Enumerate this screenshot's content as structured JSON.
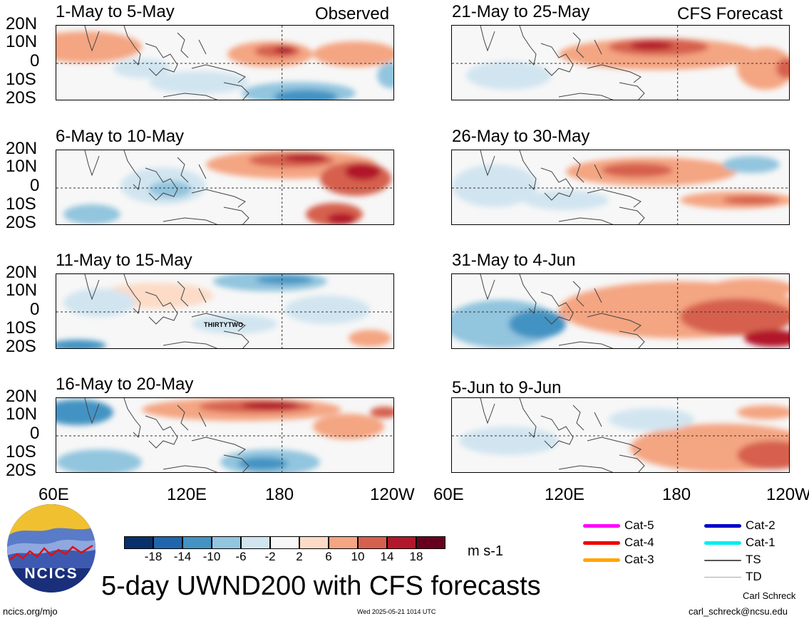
{
  "left_header": "Observed",
  "right_header": "CFS Forecast",
  "lat_labels": [
    "20N",
    "10N",
    "0",
    "10S",
    "20S"
  ],
  "lon_labels": [
    "60E",
    "120E",
    "180",
    "120W"
  ],
  "panels_left": [
    {
      "title": "1-May to 5-May"
    },
    {
      "title": "6-May to 10-May"
    },
    {
      "title": "11-May to 15-May",
      "storm": "THIRTYTWO"
    },
    {
      "title": "16-May to 20-May"
    }
  ],
  "panels_right": [
    {
      "title": "21-May to 25-May"
    },
    {
      "title": "26-May to 30-May"
    },
    {
      "title": "31-May to 4-Jun"
    },
    {
      "title": "5-Jun to 9-Jun"
    }
  ],
  "colorbar": {
    "ticks": [
      "-18",
      "-14",
      "-10",
      "-6",
      "-2",
      "2",
      "6",
      "10",
      "14",
      "18"
    ],
    "colors": [
      "#08306b",
      "#2166ac",
      "#4393c3",
      "#92c5de",
      "#d1e5f0",
      "#f7f7f7",
      "#fddbc7",
      "#f4a582",
      "#d6604d",
      "#b2182b",
      "#67001f"
    ],
    "units": "m s-1"
  },
  "title": "5-day UWND200 with CFS forecasts",
  "legend": [
    {
      "label": "Cat-5",
      "color": "#ff00ff"
    },
    {
      "label": "Cat-4",
      "color": "#ee0000"
    },
    {
      "label": "Cat-3",
      "color": "#ffa500"
    },
    {
      "label": "Cat-2",
      "color": "#0000cc"
    },
    {
      "label": "Cat-1",
      "color": "#00eeee"
    },
    {
      "label": "TS",
      "color": "#555555"
    },
    {
      "label": "TD",
      "color": "#aaaaaa"
    }
  ],
  "logo_text": "NCICS",
  "footer": {
    "url": "ncics.org/mjo",
    "timestamp": "Wed 2025-05-21 1014 UTC",
    "author": "Carl Schreck",
    "email": "carl_schreck@ncsu.edu"
  }
}
